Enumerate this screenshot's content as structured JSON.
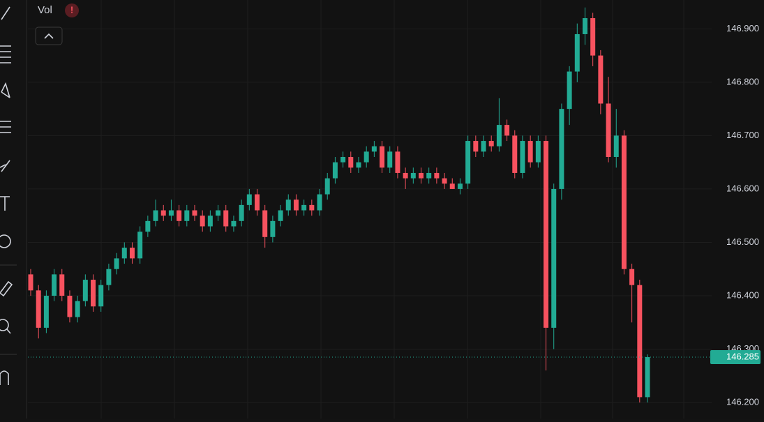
{
  "chart_data": {
    "type": "candlestick",
    "indicator": "Vol",
    "alert": "!",
    "up_color": "#22ab94",
    "down_color": "#f7525f",
    "open": [
      146.44,
      146.41,
      146.34,
      146.4,
      146.44,
      146.4,
      146.36,
      146.39,
      146.43,
      146.38,
      146.42,
      146.45,
      146.47,
      146.49,
      146.47,
      146.52,
      146.54,
      146.56,
      146.55,
      146.56,
      146.54,
      146.56,
      146.55,
      146.53,
      146.55,
      146.56,
      146.53,
      146.54,
      146.57,
      146.59,
      146.56,
      146.51,
      146.54,
      146.56,
      146.58,
      146.56,
      146.57,
      146.56,
      146.59,
      146.62,
      146.65,
      146.66,
      146.64,
      146.65,
      146.67,
      146.68,
      146.64,
      146.67,
      146.63,
      146.62,
      146.63,
      146.62,
      146.63,
      146.62,
      146.61,
      146.6,
      146.61,
      146.69,
      146.67,
      146.69,
      146.68,
      146.72,
      146.7,
      146.63,
      146.69,
      146.65,
      146.69,
      146.34,
      146.6,
      146.75,
      146.82,
      146.89,
      146.92,
      146.85,
      146.76,
      146.66,
      146.7,
      146.45,
      146.42,
      146.21
    ],
    "high": [
      146.45,
      146.42,
      146.41,
      146.45,
      146.45,
      146.41,
      146.4,
      146.44,
      146.44,
      146.43,
      146.46,
      146.48,
      146.5,
      146.5,
      146.53,
      146.55,
      146.58,
      146.57,
      146.58,
      146.57,
      146.57,
      146.57,
      146.56,
      146.56,
      146.57,
      146.57,
      146.55,
      146.58,
      146.6,
      146.6,
      146.57,
      146.55,
      146.57,
      146.59,
      146.59,
      146.58,
      146.58,
      146.6,
      146.63,
      146.66,
      146.67,
      146.67,
      146.66,
      146.68,
      146.69,
      146.69,
      146.68,
      146.68,
      146.64,
      146.64,
      146.64,
      146.64,
      146.64,
      146.63,
      146.62,
      146.62,
      146.7,
      146.7,
      146.7,
      146.7,
      146.77,
      146.73,
      146.71,
      146.7,
      146.7,
      146.7,
      146.7,
      146.61,
      146.76,
      146.83,
      146.91,
      146.94,
      146.93,
      146.86,
      146.81,
      146.75,
      146.71,
      146.46,
      146.43,
      146.29
    ],
    "low": [
      146.4,
      146.32,
      146.33,
      146.39,
      146.39,
      146.35,
      146.35,
      146.38,
      146.37,
      146.37,
      146.41,
      146.44,
      146.46,
      146.46,
      146.46,
      146.51,
      146.53,
      146.54,
      146.54,
      146.53,
      146.53,
      146.54,
      146.52,
      146.52,
      146.54,
      146.52,
      146.52,
      146.53,
      146.56,
      146.55,
      146.49,
      146.5,
      146.53,
      146.55,
      146.55,
      146.55,
      146.55,
      146.55,
      146.58,
      146.61,
      146.64,
      146.63,
      146.63,
      146.64,
      146.66,
      146.63,
      146.63,
      146.62,
      146.6,
      146.61,
      146.61,
      146.61,
      146.61,
      146.6,
      146.6,
      146.59,
      146.6,
      146.66,
      146.66,
      146.67,
      146.67,
      146.69,
      146.62,
      146.62,
      146.64,
      146.64,
      146.26,
      146.3,
      146.58,
      146.72,
      146.8,
      146.87,
      146.83,
      146.74,
      146.65,
      146.64,
      146.44,
      146.35,
      146.2,
      146.2
    ],
    "close": [
      146.41,
      146.34,
      146.4,
      146.44,
      146.4,
      146.36,
      146.39,
      146.43,
      146.38,
      146.42,
      146.45,
      146.47,
      146.49,
      146.47,
      146.52,
      146.54,
      146.56,
      146.55,
      146.56,
      146.54,
      146.56,
      146.55,
      146.53,
      146.55,
      146.56,
      146.53,
      146.54,
      146.57,
      146.59,
      146.56,
      146.51,
      146.54,
      146.56,
      146.58,
      146.56,
      146.57,
      146.56,
      146.59,
      146.62,
      146.65,
      146.66,
      146.64,
      146.65,
      146.67,
      146.68,
      146.64,
      146.67,
      146.63,
      146.62,
      146.63,
      146.62,
      146.63,
      146.62,
      146.61,
      146.6,
      146.61,
      146.69,
      146.67,
      146.69,
      146.68,
      146.72,
      146.7,
      146.63,
      146.69,
      146.65,
      146.69,
      146.34,
      146.6,
      146.75,
      146.82,
      146.89,
      146.92,
      146.85,
      146.76,
      146.66,
      146.7,
      146.45,
      146.42,
      146.21,
      146.285
    ],
    "ylim": [
      146.17,
      146.954
    ],
    "yticks": [
      {
        "value": 146.2,
        "label": "146.200"
      },
      {
        "value": 146.3,
        "label": "146.300"
      },
      {
        "value": 146.4,
        "label": "146.400"
      },
      {
        "value": 146.5,
        "label": "146.500"
      },
      {
        "value": 146.6,
        "label": "146.600"
      },
      {
        "value": 146.7,
        "label": "146.700"
      },
      {
        "value": 146.8,
        "label": "146.800"
      },
      {
        "value": 146.9,
        "label": "146.900"
      }
    ],
    "last_price": {
      "value": 146.285,
      "label": "146.285"
    },
    "grid": true
  }
}
